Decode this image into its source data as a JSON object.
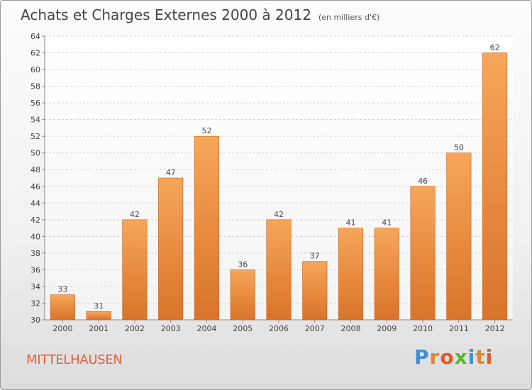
{
  "header": {
    "title": "Achats et Charges Externes 2000 à 2012",
    "unit": "(en milliers d'€)"
  },
  "footer": {
    "commune": "MITTELHAUSEN",
    "brand": "Proxiti",
    "brand_colors": [
      "#3f8fd6",
      "#e2862f",
      "#e8572a",
      "#5bb534",
      "#3f8fd6",
      "#e2862f",
      "#e8572a"
    ]
  },
  "colors": {
    "bar_light": "#f6a65a",
    "bar_dark": "#d9732a",
    "commune": "#e0603a"
  },
  "chart_data": {
    "type": "bar",
    "title": "Achats et Charges Externes 2000 à 2012",
    "subtitle": "(en milliers d'€)",
    "categories": [
      "2000",
      "2001",
      "2002",
      "2003",
      "2004",
      "2005",
      "2006",
      "2007",
      "2008",
      "2009",
      "2010",
      "2011",
      "2012"
    ],
    "values": [
      33,
      31,
      42,
      47,
      52,
      36,
      42,
      37,
      41,
      41,
      46,
      50,
      62
    ],
    "ylim": [
      30,
      64
    ],
    "yticks": [
      30,
      32,
      34,
      36,
      38,
      40,
      42,
      44,
      46,
      48,
      50,
      52,
      54,
      56,
      58,
      60,
      62,
      64
    ],
    "grid": true,
    "data_labels": true
  }
}
